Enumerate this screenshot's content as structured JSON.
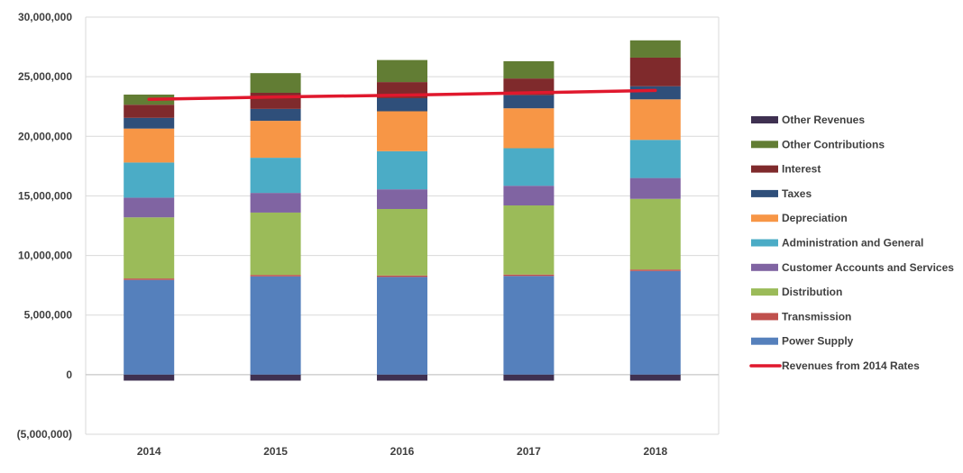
{
  "chart_data": {
    "type": "bar",
    "stacked": true,
    "categories": [
      "2014",
      "2015",
      "2016",
      "2017",
      "2018"
    ],
    "ylim": [
      -5000000,
      30000000
    ],
    "yticks": [
      -5000000,
      0,
      5000000,
      10000000,
      15000000,
      20000000,
      25000000,
      30000000
    ],
    "ytick_labels": [
      "(5,000,000)",
      "0",
      "5,000,000",
      "10,000,000",
      "15,000,000",
      "20,000,000",
      "25,000,000",
      "30,000,000"
    ],
    "grid": true,
    "legend_position": "right",
    "series": [
      {
        "name": "Power Supply",
        "color": "#5580BC",
        "values": [
          7950000,
          8250000,
          8200000,
          8280000,
          8700000
        ]
      },
      {
        "name": "Transmission",
        "color": "#C0504D",
        "values": [
          120000,
          120000,
          120000,
          120000,
          120000
        ]
      },
      {
        "name": "Distribution",
        "color": "#9BBB59",
        "values": [
          5130000,
          5230000,
          5580000,
          5800000,
          5930000
        ]
      },
      {
        "name": "Customer Accounts and Services",
        "color": "#8064A2",
        "values": [
          1650000,
          1650000,
          1650000,
          1650000,
          1750000
        ]
      },
      {
        "name": "Administration and General",
        "color": "#4BACC6",
        "values": [
          2950000,
          2950000,
          3200000,
          3150000,
          3200000
        ]
      },
      {
        "name": "Depreciation",
        "color": "#F79646",
        "values": [
          2850000,
          3100000,
          3350000,
          3350000,
          3400000
        ]
      },
      {
        "name": "Taxes",
        "color": "#2F4F7A",
        "values": [
          900000,
          1000000,
          1100000,
          1100000,
          1100000
        ]
      },
      {
        "name": "Interest",
        "color": "#7F2A2C",
        "values": [
          1100000,
          1350000,
          1350000,
          1400000,
          2400000
        ]
      },
      {
        "name": "Other Contributions",
        "color": "#627D34",
        "values": [
          850000,
          1650000,
          1850000,
          1450000,
          1450000
        ]
      },
      {
        "name": "Other Revenues",
        "color": "#3F3151",
        "values": [
          -500000,
          -500000,
          -500000,
          -500000,
          -500000
        ]
      }
    ],
    "line_series": {
      "name": "Revenues from 2014 Rates",
      "color": "#E0182D",
      "values": [
        23100000,
        23300000,
        23450000,
        23650000,
        23850000
      ]
    },
    "legend_order": [
      "Other Revenues",
      "Other Contributions",
      "Interest",
      "Taxes",
      "Depreciation",
      "Administration and General",
      "Customer Accounts and Services",
      "Distribution",
      "Transmission",
      "Power Supply",
      "Revenues from 2014 Rates"
    ]
  }
}
